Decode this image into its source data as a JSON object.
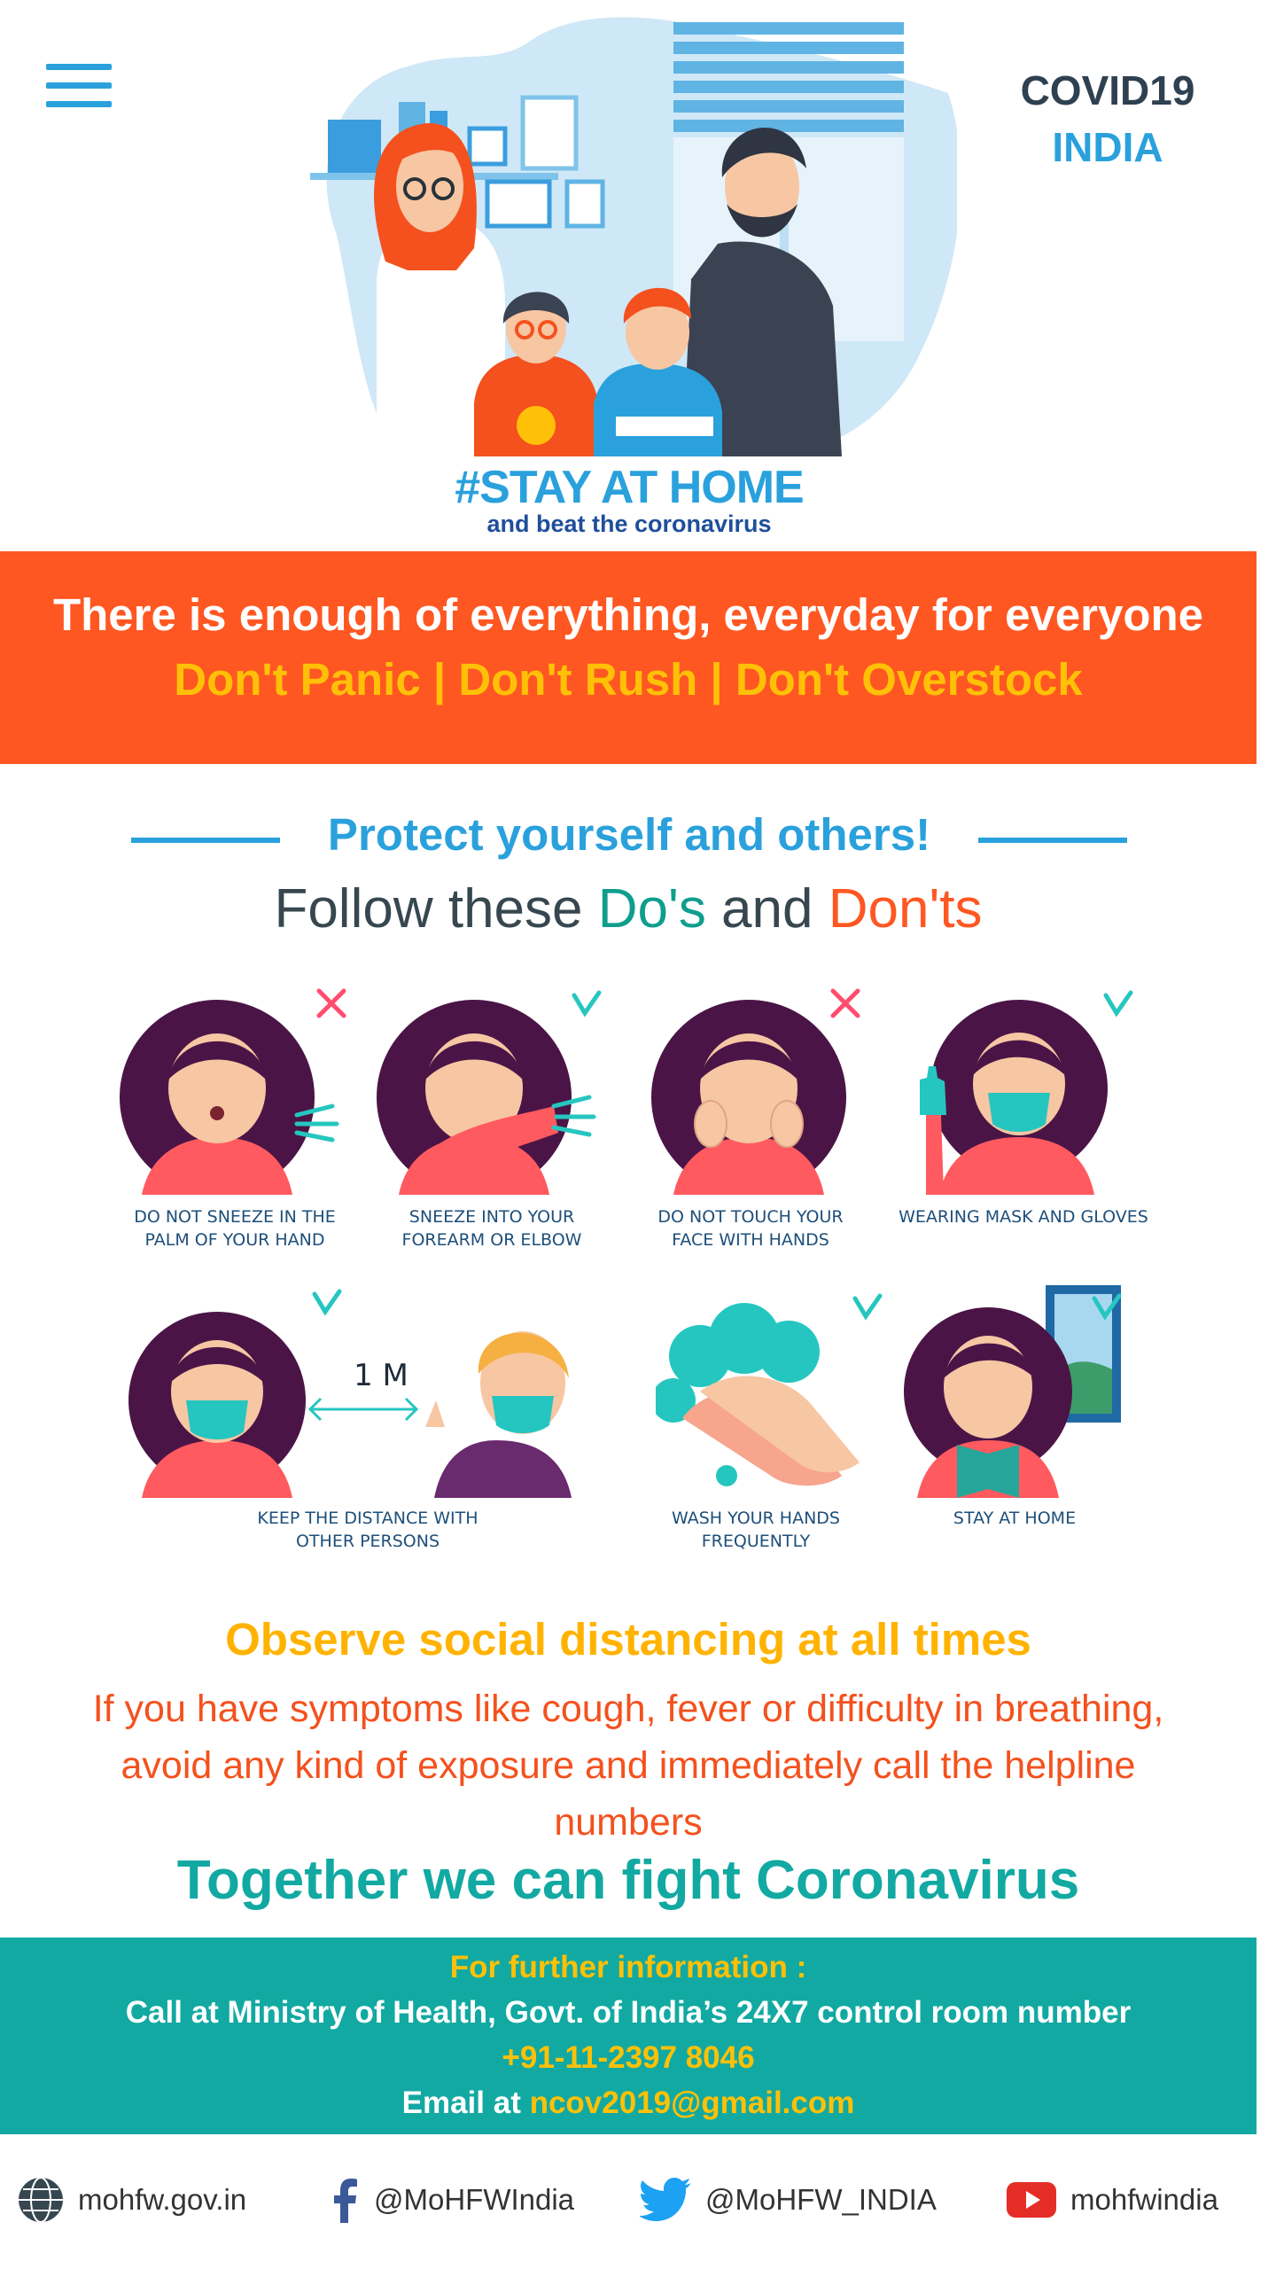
{
  "header": {
    "brand_line1": "COVID19",
    "brand_line2": "INDIA",
    "menu_icon": "hamburger-menu-icon"
  },
  "hero": {
    "title": "#STAY AT HOME",
    "subtitle": "and beat the coronavirus"
  },
  "banner": {
    "line1": "There is enough of everything, everyday for everyone",
    "line2": "Don't Panic | Don't Rush | Don't Overstock"
  },
  "protect": {
    "title": "Protect yourself and others!",
    "follow_prefix": "Follow these ",
    "follow_dos": "Do's",
    "follow_and": " and ",
    "follow_donts": "Don'ts"
  },
  "tips": [
    {
      "line1": "DO NOT SNEEZE IN THE",
      "line2": "PALM OF YOUR HAND",
      "mark": "cross"
    },
    {
      "line1": "SNEEZE INTO YOUR",
      "line2": "FOREARM OR ELBOW",
      "mark": "check"
    },
    {
      "line1": "DO NOT TOUCH YOUR",
      "line2": "FACE WITH HANDS",
      "mark": "cross"
    },
    {
      "line1": "WEARING MASK AND GLOVES",
      "line2": "",
      "mark": "check"
    },
    {
      "line1": "KEEP THE DISTANCE WITH",
      "line2": "OTHER PERSONS",
      "mark": "check",
      "distance": "1 M"
    },
    {
      "line1": "WASH YOUR HANDS",
      "line2": "FREQUENTLY",
      "mark": "check"
    },
    {
      "line1": "STAY AT HOME",
      "line2": "",
      "mark": "check"
    }
  ],
  "observe": "Observe social distancing at all times",
  "symptoms": "If you have symptoms like cough, fever or difficulty in breathing, avoid any kind of exposure and immediately call the helpline numbers",
  "together": "Together we can fight Coronavirus",
  "info": {
    "heading": "For further information :",
    "call_text": "Call at Ministry of Health, Govt. of India’s 24X7 control room number",
    "phone": "+91-11-2397 8046",
    "email_label": "Email at ",
    "email": "ncov2019@gmail.com"
  },
  "footer": {
    "website": "mohfw.gov.in",
    "facebook": "@MoHFWIndia",
    "twitter": "@MoHFW_INDIA",
    "youtube": "mohfwindia"
  },
  "colors": {
    "brand_blue": "#2aa1dc",
    "orange": "#ff5722",
    "yellow": "#ffc107",
    "teal": "#12a9a2",
    "dark": "#2f4050"
  }
}
